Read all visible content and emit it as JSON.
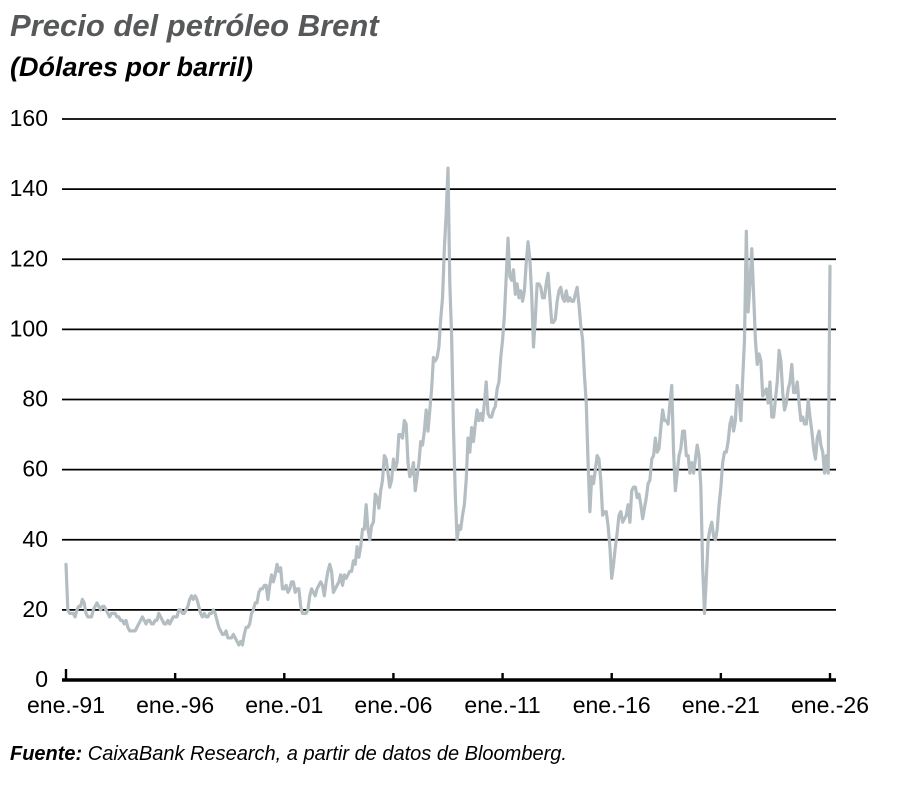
{
  "header": {
    "title": "Precio del petróleo Brent",
    "subtitle": "(Dólares por barril)"
  },
  "source": {
    "prefix": "Fuente:",
    "text": " CaixaBank Research, a partir de datos de Bloomberg."
  },
  "colors": {
    "title_gray": "#565859",
    "line": "#b4bdc1",
    "grid": "#000000",
    "text": "#000000"
  },
  "chart_data": {
    "type": "line",
    "title": "Precio del petróleo Brent",
    "ylabel": "Dólares por barril",
    "ylim": [
      0,
      160
    ],
    "y_ticks": [
      0,
      20,
      40,
      60,
      80,
      100,
      120,
      140,
      160
    ],
    "x_tick_labels": [
      "ene.-91",
      "ene.-96",
      "ene.-01",
      "ene.-06",
      "ene.-11",
      "ene.-16",
      "ene.-21",
      "ene.-26"
    ],
    "grid": "horizontal",
    "legend": "none",
    "frequency": "monthly",
    "x_start_label": "ene.-91",
    "x_end_label": "ene.-26",
    "series": [
      {
        "name": "Precio del petróleo Brent (dólares por barril)",
        "values": [
          33,
          20,
          19,
          19,
          19,
          18,
          20,
          21,
          21,
          23,
          22,
          19,
          18,
          18,
          18,
          20,
          21,
          22,
          21,
          20,
          21,
          21,
          20,
          19,
          18,
          19,
          19,
          19,
          18,
          18,
          17,
          17,
          16,
          17,
          15,
          14,
          14,
          14,
          14,
          15,
          16,
          17,
          18,
          17,
          16,
          17,
          17,
          16,
          16,
          17,
          17,
          19,
          18,
          17,
          16,
          16,
          17,
          16,
          17,
          18,
          18,
          18,
          20,
          20,
          19,
          19,
          20,
          21,
          23,
          24,
          23,
          24,
          23,
          21,
          19,
          18,
          19,
          18,
          18,
          19,
          19,
          20,
          19,
          17,
          15,
          14,
          13,
          13,
          14,
          12,
          12,
          12,
          13,
          12,
          11,
          10,
          11,
          10,
          13,
          15,
          15,
          16,
          19,
          20,
          22,
          22,
          25,
          26,
          26,
          27,
          27,
          23,
          27,
          30,
          28,
          30,
          33,
          31,
          32,
          26,
          26,
          27,
          25,
          26,
          28,
          28,
          25,
          26,
          26,
          21,
          19,
          19,
          19,
          20,
          24,
          26,
          25,
          24,
          26,
          27,
          28,
          27,
          24,
          28,
          31,
          33,
          31,
          25,
          26,
          27,
          28,
          30,
          27,
          30,
          29,
          30,
          31,
          31,
          34,
          33,
          38,
          35,
          38,
          43,
          43,
          50,
          43,
          40,
          44,
          45,
          53,
          52,
          49,
          54,
          57,
          64,
          63,
          59,
          55,
          57,
          63,
          60,
          62,
          70,
          70,
          69,
          74,
          73,
          62,
          58,
          59,
          62,
          54,
          58,
          62,
          68,
          67,
          71,
          77,
          71,
          77,
          83,
          92,
          91,
          92,
          95,
          103,
          109,
          123,
          133,
          146,
          113,
          98,
          72,
          53,
          40,
          44,
          43,
          47,
          50,
          57,
          69,
          65,
          72,
          68,
          73,
          77,
          74,
          76,
          74,
          79,
          85,
          76,
          75,
          75,
          77,
          78,
          83,
          85,
          92,
          97,
          104,
          115,
          126,
          115,
          114,
          117,
          110,
          113,
          109,
          111,
          108,
          111,
          119,
          125,
          120,
          110,
          95,
          103,
          113,
          113,
          112,
          109,
          109,
          113,
          116,
          109,
          102,
          102,
          103,
          108,
          111,
          112,
          109,
          108,
          111,
          108,
          109,
          108,
          108,
          110,
          112,
          107,
          101,
          97,
          87,
          79,
          62,
          48,
          58,
          56,
          60,
          64,
          63,
          57,
          47,
          48,
          48,
          44,
          38,
          29,
          33,
          38,
          42,
          47,
          48,
          45,
          46,
          47,
          50,
          45,
          54,
          55,
          55,
          52,
          53,
          50,
          46,
          49,
          52,
          56,
          57,
          63,
          64,
          69,
          65,
          66,
          72,
          77,
          74,
          74,
          73,
          79,
          84,
          65,
          54,
          59,
          64,
          66,
          71,
          71,
          64,
          64,
          59,
          62,
          59,
          63,
          67,
          64,
          55,
          32,
          19,
          29,
          40,
          43,
          45,
          41,
          40,
          43,
          50,
          55,
          62,
          65,
          65,
          68,
          73,
          75,
          71,
          74,
          84,
          81,
          74,
          86,
          97,
          128,
          105,
          113,
          123,
          110,
          97,
          90,
          93,
          91,
          81,
          82,
          83,
          79,
          85,
          75,
          75,
          80,
          85,
          94,
          91,
          82,
          77,
          79,
          83,
          85,
          90,
          82,
          82,
          85,
          79,
          74,
          75,
          73,
          73,
          80,
          75,
          71,
          66,
          63,
          69,
          71,
          67,
          65,
          59,
          64,
          59,
          118
        ]
      }
    ]
  }
}
